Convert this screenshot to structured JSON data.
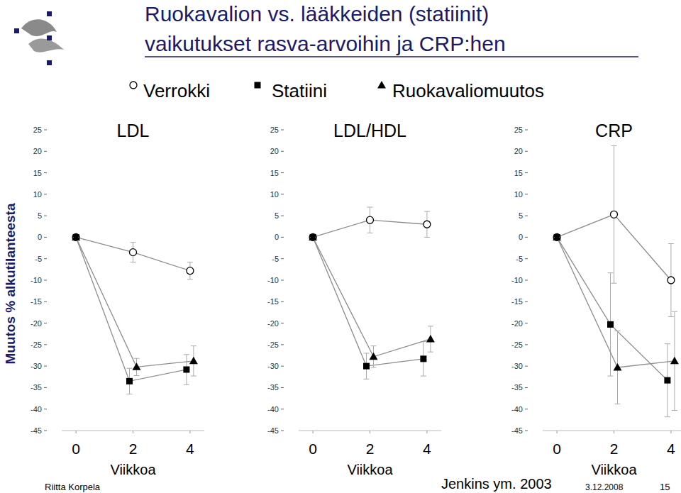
{
  "slide": {
    "title_lines": [
      "Ruokavalion vs. lääkkeiden (statiinit)",
      "vaikutukset rasva-arvoihin ja CRP:hen"
    ],
    "ylabel": "Muutos % alkutilanteesta",
    "author": "Riitta Korpela",
    "citation": "Jenkins ym. 2003",
    "date": "3.12.2008",
    "page": "15"
  },
  "chart_data": [
    {
      "type": "line",
      "title": "LDL",
      "xlabel": "Viikkoa",
      "x": [
        0,
        2,
        4
      ],
      "xlim": [
        -0.5,
        4.5
      ],
      "xticks": [
        0,
        2,
        4
      ],
      "ylim": [
        -45,
        25
      ],
      "yticks": [
        -45,
        -40,
        -35,
        -30,
        -25,
        -20,
        -15,
        -10,
        -5,
        0,
        5,
        10,
        15,
        20,
        25
      ],
      "grid": false,
      "series": [
        {
          "name": "Verrokki",
          "color": "#000000",
          "marker": "circle",
          "values": [
            0,
            -3.5,
            -7.8
          ],
          "errors": [
            0,
            2.3,
            2
          ]
        },
        {
          "name": "Statiini",
          "color": "#000000",
          "marker": "square",
          "values": [
            0,
            -33.5,
            -30.8
          ],
          "errors": [
            0,
            3,
            3.5
          ]
        },
        {
          "name": "Ruokavaliomuutos",
          "color": "#000000",
          "marker": "triangle",
          "values": [
            0,
            -30.2,
            -28.8
          ],
          "errors": [
            0,
            2,
            3.5
          ]
        }
      ]
    },
    {
      "type": "line",
      "title": "LDL/HDL",
      "xlabel": "Viikkoa",
      "x": [
        0,
        2,
        4
      ],
      "xlim": [
        -0.5,
        4.5
      ],
      "xticks": [
        0,
        2,
        4
      ],
      "ylim": [
        -45,
        25
      ],
      "yticks": [
        -45,
        -40,
        -35,
        -30,
        -25,
        -20,
        -15,
        -10,
        -5,
        0,
        5,
        10,
        15,
        20,
        25
      ],
      "grid": false,
      "series": [
        {
          "name": "Verrokki",
          "color": "#000000",
          "marker": "circle",
          "values": [
            0,
            4,
            3
          ],
          "errors": [
            0,
            3,
            3
          ]
        },
        {
          "name": "Statiini",
          "color": "#000000",
          "marker": "square",
          "values": [
            0,
            -30,
            -28.3
          ],
          "errors": [
            0,
            3,
            4
          ]
        },
        {
          "name": "Ruokavaliomuutos",
          "color": "#000000",
          "marker": "triangle",
          "values": [
            0,
            -27.8,
            -23.7
          ],
          "errors": [
            0,
            2.5,
            3
          ]
        }
      ]
    },
    {
      "type": "line",
      "title": "CRP",
      "xlabel": "Viikkoa",
      "x": [
        0,
        2,
        4
      ],
      "xlim": [
        -0.5,
        4.5
      ],
      "xticks": [
        0,
        2,
        4
      ],
      "ylim": [
        -45,
        25
      ],
      "yticks": [
        -45,
        -40,
        -35,
        -30,
        -25,
        -20,
        -15,
        -10,
        -5,
        0,
        5,
        10,
        15,
        20,
        25
      ],
      "grid": false,
      "series": [
        {
          "name": "Verrokki",
          "color": "#000000",
          "marker": "circle",
          "values": [
            0,
            5.3,
            -10
          ],
          "errors": [
            0,
            16,
            8.5
          ]
        },
        {
          "name": "Statiini",
          "color": "#000000",
          "marker": "square",
          "values": [
            0,
            -20.3,
            -33.3
          ],
          "errors": [
            0,
            12,
            8.5
          ]
        },
        {
          "name": "Ruokavaliomuutos",
          "color": "#000000",
          "marker": "triangle",
          "values": [
            0,
            -30.3,
            -28.8
          ],
          "errors": [
            0,
            8.5,
            11.5
          ]
        }
      ]
    }
  ]
}
